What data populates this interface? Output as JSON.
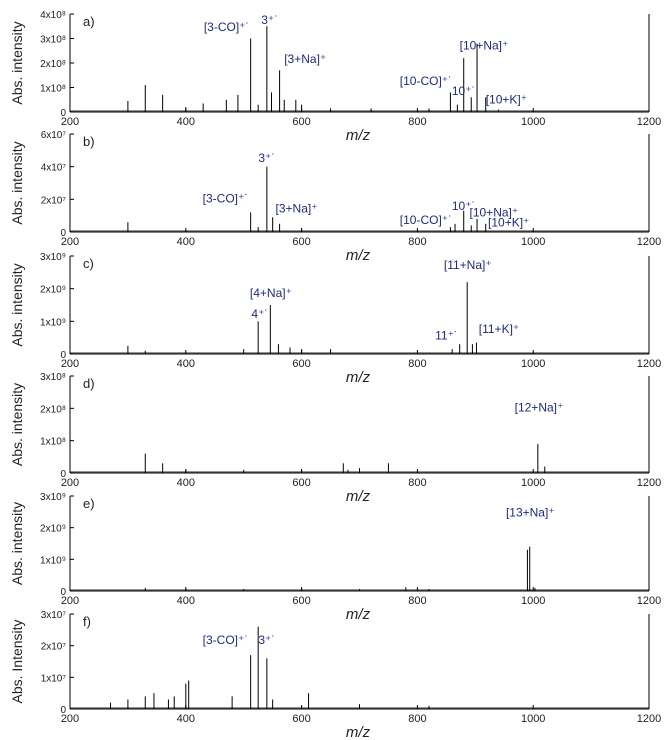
{
  "colors": {
    "axis": "#000000",
    "peak": "#000000",
    "annotation": "#1f2a7a"
  },
  "chart_data": [
    {
      "type": "line",
      "panel_label": "a)",
      "ylabel": "Abs. intensity",
      "xlabel": "m/z",
      "xlim": [
        200,
        1200
      ],
      "ylim": [
        0,
        400000000.0
      ],
      "xticks": [
        "200",
        "400",
        "600",
        "800",
        "1000",
        "1200"
      ],
      "yticks": [
        {
          "v": 0,
          "t": "0"
        },
        {
          "v": 100000000.0,
          "t": "1x10⁸"
        },
        {
          "v": 200000000.0,
          "t": "2x10⁸"
        },
        {
          "v": 300000000.0,
          "t": "3x10⁸"
        },
        {
          "v": 400000000.0,
          "t": "4x10⁸"
        }
      ],
      "peaks": [
        [
          300,
          45000000.0
        ],
        [
          330,
          110000000.0
        ],
        [
          360,
          70000000.0
        ],
        [
          400,
          20000000.0
        ],
        [
          430,
          35000000.0
        ],
        [
          470,
          50000000.0
        ],
        [
          490,
          70000000.0
        ],
        [
          512,
          300000000.0
        ],
        [
          525,
          30000000.0
        ],
        [
          540,
          350000000.0
        ],
        [
          548,
          80000000.0
        ],
        [
          562,
          170000000.0
        ],
        [
          570,
          50000000.0
        ],
        [
          590,
          50000000.0
        ],
        [
          600,
          30000000.0
        ],
        [
          650,
          15000000.0
        ],
        [
          720,
          15000000.0
        ],
        [
          820,
          15000000.0
        ],
        [
          857,
          80000000.0
        ],
        [
          869,
          30000000.0
        ],
        [
          880,
          220000000.0
        ],
        [
          893,
          60000000.0
        ],
        [
          903,
          280000000.0
        ],
        [
          918,
          60000000.0
        ],
        [
          940,
          10000000.0
        ]
      ],
      "annotations": [
        {
          "text": "[3-CO]⁺˙",
          "x": 510,
          "y": 330000000.0,
          "anchor": "end"
        },
        {
          "text": "3⁺˙",
          "x": 545,
          "y": 360000000.0,
          "anchor": "middle"
        },
        {
          "text": "[3+Na]⁺",
          "x": 570,
          "y": 200000000.0,
          "anchor": "start"
        },
        {
          "text": "[10-CO]⁺˙",
          "x": 860,
          "y": 110000000.0,
          "anchor": "end"
        },
        {
          "text": "10⁺˙",
          "x": 880,
          "y": 70000000.0,
          "anchor": "middle"
        },
        {
          "text": "[10+Na]⁺",
          "x": 915,
          "y": 255000000.0,
          "anchor": "middle"
        },
        {
          "text": "[10+K]⁺",
          "x": 918,
          "y": 35000000.0,
          "anchor": "start"
        }
      ]
    },
    {
      "type": "line",
      "panel_label": "b)",
      "ylabel": "Abs. intensity",
      "xlabel": "m/z",
      "xlim": [
        200,
        1200
      ],
      "ylim": [
        0,
        60000000.0
      ],
      "xticks": [
        "200",
        "400",
        "600",
        "800",
        "1000",
        "1200"
      ],
      "yticks": [
        {
          "v": 0,
          "t": "0"
        },
        {
          "v": 20000000.0,
          "t": "2x10⁷"
        },
        {
          "v": 40000000.0,
          "t": "4x10⁷"
        },
        {
          "v": 60000000.0,
          "t": "6x10⁷"
        }
      ],
      "peaks": [
        [
          300,
          6000000.0
        ],
        [
          512,
          12000000.0
        ],
        [
          525,
          3000000.0
        ],
        [
          540,
          40000000.0
        ],
        [
          550,
          9000000.0
        ],
        [
          562,
          5000000.0
        ],
        [
          600,
          2000000.0
        ],
        [
          857,
          3000000.0
        ],
        [
          865,
          5000000.0
        ],
        [
          880,
          13000000.0
        ],
        [
          893,
          4000000.0
        ],
        [
          903,
          8000000.0
        ],
        [
          918,
          5000000.0
        ]
      ],
      "annotations": [
        {
          "text": "[3-CO]⁺˙",
          "x": 508,
          "y": 18000000.0,
          "anchor": "end"
        },
        {
          "text": "3⁺˙",
          "x": 540,
          "y": 43000000.0,
          "anchor": "middle"
        },
        {
          "text": "[3+Na]⁺",
          "x": 555,
          "y": 12000000.0,
          "anchor": "start"
        },
        {
          "text": "[10-CO]⁺˙",
          "x": 860,
          "y": 5000000.0,
          "anchor": "end"
        },
        {
          "text": "10⁺˙",
          "x": 880,
          "y": 13500000.0,
          "anchor": "middle"
        },
        {
          "text": "[10+Na]⁺",
          "x": 890,
          "y": 9500000.0,
          "anchor": "start"
        },
        {
          "text": "[10+K]⁺",
          "x": 922,
          "y": 3500000.0,
          "anchor": "start"
        }
      ]
    },
    {
      "type": "line",
      "panel_label": "c)",
      "ylabel": "Abs. intensity",
      "xlabel": "m/z",
      "xlim": [
        200,
        1200
      ],
      "ylim": [
        0,
        3000000000.0
      ],
      "xticks": [
        "200",
        "400",
        "600",
        "800",
        "1000",
        "1200"
      ],
      "yticks": [
        {
          "v": 0,
          "t": "0"
        },
        {
          "v": 1000000000.0,
          "t": "1x10⁹"
        },
        {
          "v": 2000000000.0,
          "t": "2x10⁹"
        },
        {
          "v": 3000000000.0,
          "t": "3x10⁹"
        }
      ],
      "peaks": [
        [
          300,
          250000000.0
        ],
        [
          330,
          100000000.0
        ],
        [
          500,
          150000000.0
        ],
        [
          525,
          1000000000.0
        ],
        [
          546,
          1500000000.0
        ],
        [
          560,
          300000000.0
        ],
        [
          580,
          200000000.0
        ],
        [
          600,
          150000000.0
        ],
        [
          650,
          150000000.0
        ],
        [
          860,
          150000000.0
        ],
        [
          873,
          300000000.0
        ],
        [
          886,
          2200000000.0
        ],
        [
          895,
          300000000.0
        ],
        [
          902,
          350000000.0
        ]
      ],
      "annotations": [
        {
          "text": "[4+Na]⁺",
          "x": 547,
          "y": 1750000000.0,
          "anchor": "middle"
        },
        {
          "text": "4⁺˙",
          "x": 528,
          "y": 1100000000.0,
          "anchor": "middle"
        },
        {
          "text": "[11+Na]⁺",
          "x": 887,
          "y": 2600000000.0,
          "anchor": "middle"
        },
        {
          "text": "11⁺˙",
          "x": 870,
          "y": 450000000.0,
          "anchor": "end"
        },
        {
          "text": "[11+K]⁺",
          "x": 906,
          "y": 650000000.0,
          "anchor": "start"
        }
      ]
    },
    {
      "type": "line",
      "panel_label": "d)",
      "ylabel": "Abs. intensity",
      "xlabel": "m/z",
      "xlim": [
        200,
        1200
      ],
      "ylim": [
        0,
        300000000.0
      ],
      "xticks": [
        "200",
        "400",
        "600",
        "800",
        "1000",
        "1200"
      ],
      "yticks": [
        {
          "v": 0,
          "t": "0"
        },
        {
          "v": 100000000.0,
          "t": "1x10⁸"
        },
        {
          "v": 200000000.0,
          "t": "2x10⁸"
        },
        {
          "v": 300000000.0,
          "t": "3x10⁸"
        }
      ],
      "peaks": [
        [
          330,
          60000000.0
        ],
        [
          360,
          30000000.0
        ],
        [
          400,
          10000000.0
        ],
        [
          500,
          10000000.0
        ],
        [
          600,
          10000000.0
        ],
        [
          672,
          30000000.0
        ],
        [
          680,
          10000000.0
        ],
        [
          700,
          15000000.0
        ],
        [
          750,
          30000000.0
        ],
        [
          1008,
          90000000.0
        ],
        [
          1020,
          20000000.0
        ]
      ],
      "annotations": [
        {
          "text": "[12+Na]⁺",
          "x": 1010,
          "y": 190000000.0,
          "anchor": "middle"
        }
      ]
    },
    {
      "type": "line",
      "panel_label": "e)",
      "ylabel": "Abs. intensity",
      "xlabel": "m/z",
      "xlim": [
        200,
        1200
      ],
      "ylim": [
        0,
        3000000000.0
      ],
      "xticks": [
        "200",
        "400",
        "600",
        "800",
        "1000",
        "1200"
      ],
      "yticks": [
        {
          "v": 0,
          "t": "0"
        },
        {
          "v": 1000000000.0,
          "t": "1x10⁹"
        },
        {
          "v": 2000000000.0,
          "t": "2x10⁹"
        },
        {
          "v": 3000000000.0,
          "t": "3x10⁹"
        }
      ],
      "peaks": [
        [
          330,
          100000000.0
        ],
        [
          400,
          80000000.0
        ],
        [
          500,
          60000000.0
        ],
        [
          600,
          80000000.0
        ],
        [
          700,
          60000000.0
        ],
        [
          780,
          120000000.0
        ],
        [
          820,
          60000000.0
        ],
        [
          990,
          1300000000.0
        ],
        [
          994,
          1400000000.0
        ],
        [
          1003,
          100000000.0
        ]
      ],
      "annotations": [
        {
          "text": "[13+Na]⁺",
          "x": 995,
          "y": 2350000000.0,
          "anchor": "middle"
        }
      ]
    },
    {
      "type": "line",
      "panel_label": "f)",
      "ylabel": "Abs. Intensity",
      "xlabel": "m/z",
      "xlim": [
        200,
        1200
      ],
      "ylim": [
        0,
        30000000.0
      ],
      "xticks": [
        "200",
        "400",
        "600",
        "800",
        "1000",
        "1200"
      ],
      "yticks": [
        {
          "v": 0,
          "t": "0"
        },
        {
          "v": 10000000.0,
          "t": "1x10⁷"
        },
        {
          "v": 20000000.0,
          "t": "2x10⁷"
        },
        {
          "v": 30000000.0,
          "t": "3x10⁷"
        }
      ],
      "peaks": [
        [
          270,
          2000000.0
        ],
        [
          300,
          3000000.0
        ],
        [
          330,
          4000000.0
        ],
        [
          345,
          5000000.0
        ],
        [
          370,
          3000000.0
        ],
        [
          380,
          4000000.0
        ],
        [
          400,
          8000000.0
        ],
        [
          405,
          9000000.0
        ],
        [
          480,
          4000000.0
        ],
        [
          512,
          17000000.0
        ],
        [
          525,
          26000000.0
        ],
        [
          540,
          16000000.0
        ],
        [
          550,
          3000000.0
        ],
        [
          612,
          5000000.0
        ],
        [
          700,
          1500000.0
        ],
        [
          820,
          1000000.0
        ]
      ],
      "annotations": [
        {
          "text": "[3-CO]⁺˙",
          "x": 508,
          "y": 20500000.0,
          "anchor": "end"
        },
        {
          "text": "3⁺˙",
          "x": 540,
          "y": 20500000.0,
          "anchor": "middle"
        }
      ]
    }
  ]
}
